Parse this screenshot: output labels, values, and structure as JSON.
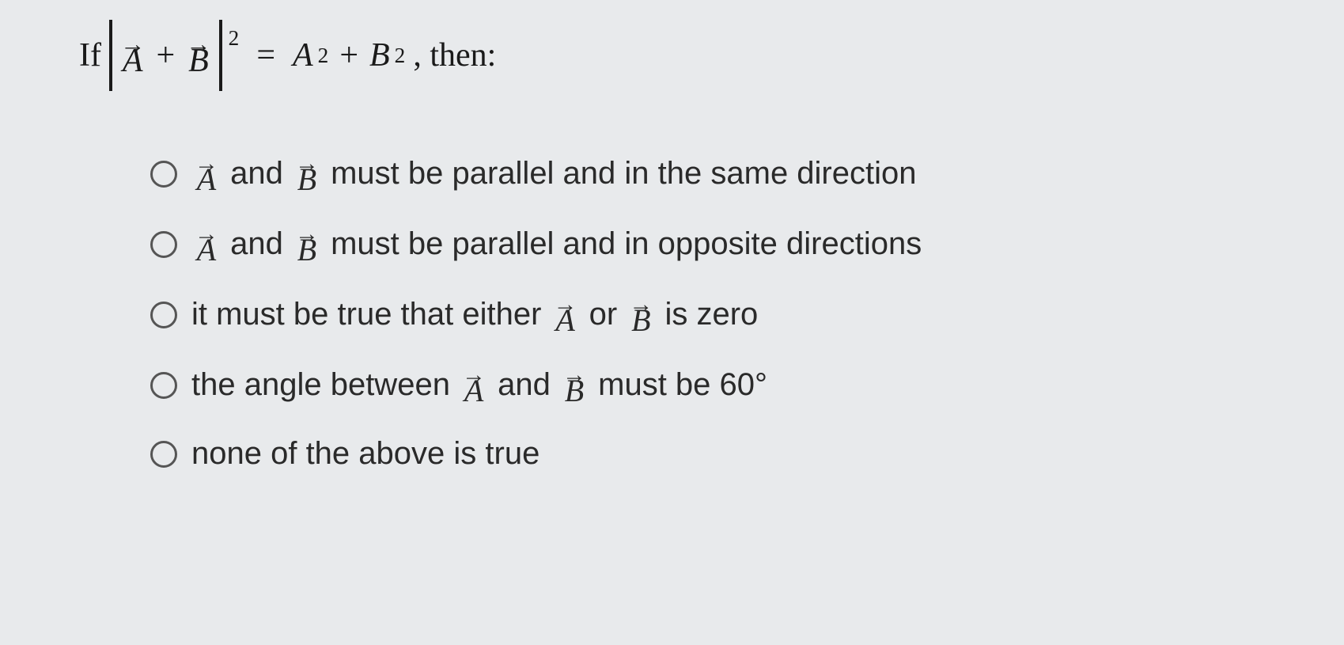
{
  "question": {
    "prefix": "If",
    "vecA": "A",
    "vecB": "B",
    "plus": "+",
    "equals": "=",
    "A2": "A",
    "B2": "B",
    "exp": "2",
    "suffix": ", then:"
  },
  "options": [
    {
      "parts": [
        {
          "type": "vec",
          "v": "A"
        },
        {
          "type": "text",
          "v": " and "
        },
        {
          "type": "vec",
          "v": "B"
        },
        {
          "type": "text",
          "v": " must be parallel and in the same direction"
        }
      ]
    },
    {
      "parts": [
        {
          "type": "vec",
          "v": "A"
        },
        {
          "type": "text",
          "v": " and "
        },
        {
          "type": "vec",
          "v": "B"
        },
        {
          "type": "text",
          "v": " must be parallel and in opposite directions"
        }
      ]
    },
    {
      "parts": [
        {
          "type": "text",
          "v": "it must be true that either "
        },
        {
          "type": "vec",
          "v": "A"
        },
        {
          "type": "text",
          "v": " or "
        },
        {
          "type": "vec",
          "v": "B"
        },
        {
          "type": "text",
          "v": " is zero"
        }
      ]
    },
    {
      "parts": [
        {
          "type": "text",
          "v": "the angle between "
        },
        {
          "type": "vec",
          "v": "A"
        },
        {
          "type": "text",
          "v": " and "
        },
        {
          "type": "vec",
          "v": "B"
        },
        {
          "type": "text",
          "v": " must be 60°"
        }
      ]
    },
    {
      "parts": [
        {
          "type": "text",
          "v": "none of the above is true"
        }
      ]
    }
  ],
  "style": {
    "background": "#e8eaec",
    "text_color": "#1a1a1a",
    "question_fontsize": 42,
    "option_fontsize": 40,
    "radio_border": "#555555"
  }
}
